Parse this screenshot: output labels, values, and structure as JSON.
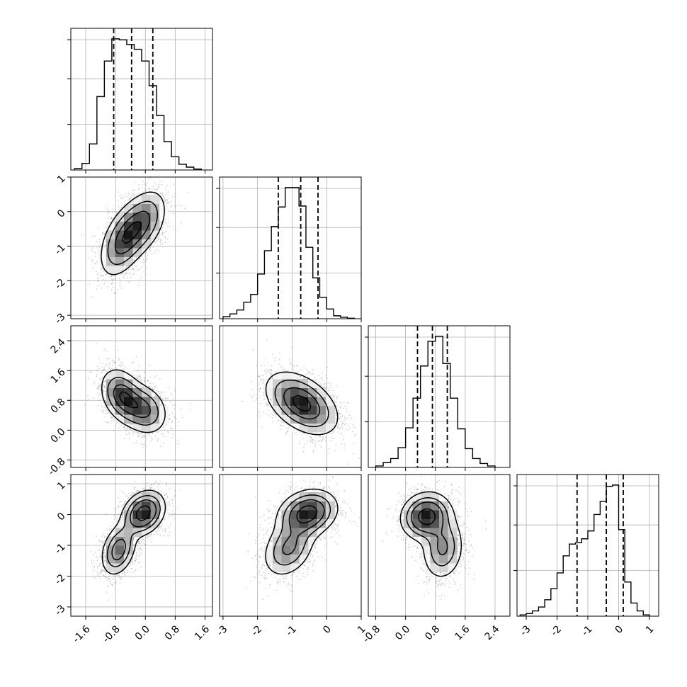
{
  "chart_data": {
    "type": "corner",
    "parameters": 4,
    "ranges": [
      [
        -2.0,
        1.8
      ],
      [
        -3.1,
        1.0
      ],
      [
        -1.0,
        2.8
      ],
      [
        -3.3,
        1.3
      ]
    ],
    "ticks": [
      [
        "-1.6",
        "-0.8",
        "0.0",
        "0.8",
        "1.6"
      ],
      [
        "-3",
        "-2",
        "-1",
        "0",
        "1"
      ],
      [
        "-0.8",
        "0.0",
        "0.8",
        "1.6",
        "2.4"
      ],
      [
        "-3",
        "-2",
        "-1",
        "0",
        "1"
      ]
    ],
    "histograms": [
      {
        "bin_start": -1.9,
        "bin_width": 0.2,
        "counts": [
          3,
          14,
          55,
          155,
          230,
          277,
          275,
          265,
          255,
          230,
          178,
          115,
          60,
          28,
          12,
          6,
          2
        ],
        "quantiles": [
          -0.85,
          -0.37,
          0.2
        ]
      },
      {
        "bin_start": -3.0,
        "bin_width": 0.2,
        "counts": [
          4,
          10,
          18,
          34,
          50,
          92,
          140,
          190,
          230,
          270,
          270,
          232,
          147,
          84,
          44,
          20,
          6,
          3,
          1
        ],
        "quantiles": [
          -1.4,
          -0.75,
          -0.25
        ]
      },
      {
        "bin_start": -0.8,
        "bin_width": 0.2,
        "counts": [
          3,
          10,
          18,
          40,
          80,
          140,
          205,
          255,
          265,
          210,
          140,
          78,
          38,
          18,
          8,
          3
        ],
        "quantiles": [
          0.32,
          0.72,
          1.12
        ]
      },
      {
        "bin_start": -3.2,
        "bin_width": 0.2,
        "counts": [
          2,
          4,
          8,
          14,
          25,
          42,
          66,
          92,
          110,
          112,
          118,
          130,
          155,
          175,
          198,
          200,
          132,
          52,
          20,
          8,
          2
        ],
        "quantiles": [
          -1.35,
          -0.4,
          0.15
        ]
      }
    ],
    "pairs": [
      {
        "x_param": 1,
        "y_param": 2,
        "modes": [
          {
            "x": -0.6,
            "y": -0.85,
            "sx": 0.33,
            "sy": 0.55,
            "rho": 0.45,
            "w": 0.55
          },
          {
            "x": -0.05,
            "y": -0.3,
            "sx": 0.33,
            "sy": 0.5,
            "rho": 0.4,
            "w": 0.45
          }
        ]
      },
      {
        "x_param": 1,
        "y_param": 3,
        "modes": [
          {
            "x": -0.62,
            "y": 0.92,
            "sx": 0.3,
            "sy": 0.38,
            "rho": -0.3,
            "w": 0.55
          },
          {
            "x": -0.02,
            "y": 0.55,
            "sx": 0.32,
            "sy": 0.35,
            "rho": -0.2,
            "w": 0.45
          }
        ]
      },
      {
        "x_param": 1,
        "y_param": 4,
        "modes": [
          {
            "x": -0.05,
            "y": 0.05,
            "sx": 0.3,
            "sy": 0.38,
            "rho": 0.25,
            "w": 0.6
          },
          {
            "x": -0.72,
            "y": -1.15,
            "sx": 0.25,
            "sy": 0.45,
            "rho": 0.3,
            "w": 0.4
          }
        ]
      },
      {
        "x_param": 2,
        "y_param": 3,
        "modes": [
          {
            "x": -0.72,
            "y": 0.72,
            "sx": 0.52,
            "sy": 0.42,
            "rho": -0.45,
            "w": 1.0
          }
        ]
      },
      {
        "x_param": 2,
        "y_param": 4,
        "modes": [
          {
            "x": -0.55,
            "y": 0.05,
            "sx": 0.45,
            "sy": 0.4,
            "rho": 0.2,
            "w": 0.6
          },
          {
            "x": -1.1,
            "y": -1.1,
            "sx": 0.4,
            "sy": 0.5,
            "rho": 0.3,
            "w": 0.4
          }
        ]
      },
      {
        "x_param": 3,
        "y_param": 4,
        "modes": [
          {
            "x": 0.55,
            "y": -0.05,
            "sx": 0.35,
            "sy": 0.4,
            "rho": 0.1,
            "w": 0.6
          },
          {
            "x": 1.0,
            "y": -1.1,
            "sx": 0.3,
            "sy": 0.55,
            "rho": 0.1,
            "w": 0.4
          }
        ]
      }
    ],
    "contour_levels": [
      0.118,
      0.393,
      0.675,
      0.865
    ],
    "grid": true,
    "colors": {
      "line": "#000000",
      "scatter": "#555555",
      "density_max": "#000000",
      "density_min": "#ffffff",
      "grid": "#b0b0b0"
    }
  }
}
